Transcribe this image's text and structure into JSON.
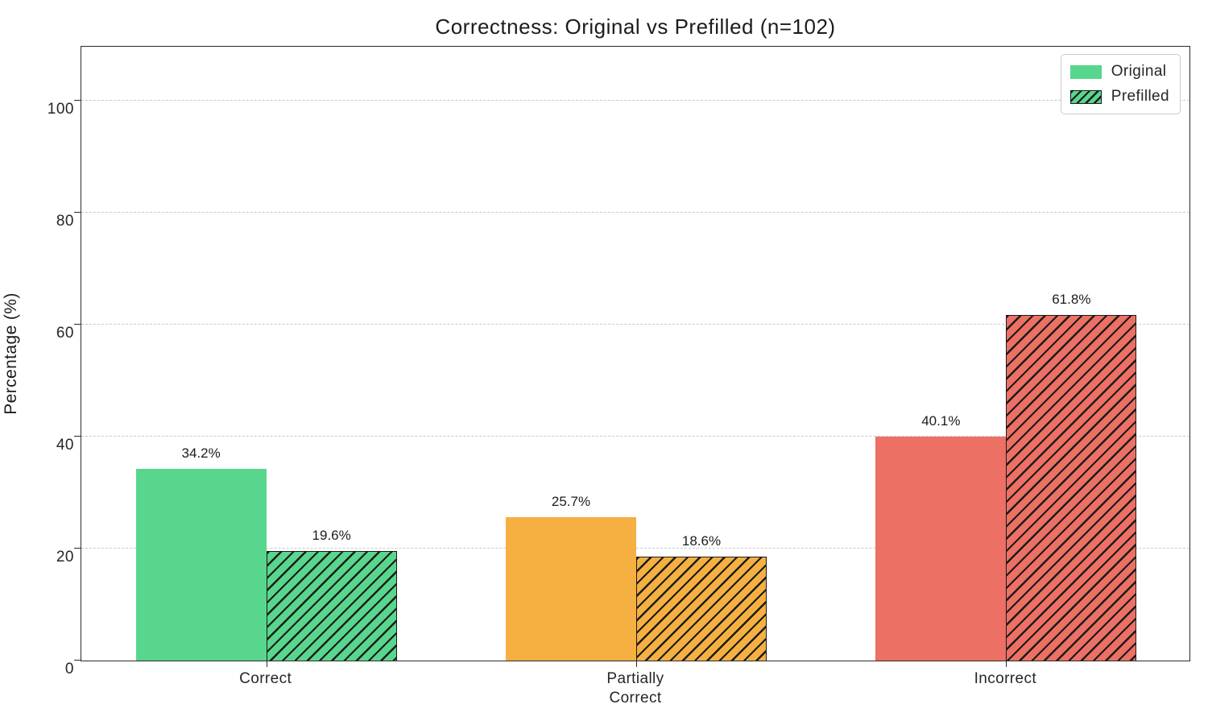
{
  "title": "Correctness: Original vs Prefilled (n=102)",
  "chart_data": {
    "type": "bar",
    "title": "Correctness: Original vs Prefilled (n=102)",
    "categories": [
      "Correct",
      "Partially\nCorrect",
      "Incorrect"
    ],
    "series": [
      {
        "name": "Original",
        "style": "solid",
        "values": [
          34.2,
          25.7,
          40.1
        ],
        "value_labels": [
          "34.2%",
          "25.7%",
          "40.1%"
        ]
      },
      {
        "name": "Prefilled",
        "style": "hatched",
        "values": [
          19.6,
          18.6,
          61.8
        ],
        "value_labels": [
          "19.6%",
          "18.6%",
          "61.8%"
        ]
      }
    ],
    "xlabel": "",
    "ylabel": "Percentage (%)",
    "ylim": [
      0,
      110
    ],
    "yticks": [
      0,
      20,
      40,
      60,
      80,
      100
    ],
    "grid": "horizontal-dashed",
    "legend_position": "upper-right",
    "category_colors": [
      "#58d68d",
      "#f5b041",
      "#ec7063"
    ],
    "hatch_color": "#1b1b1b",
    "hatch_pattern": "diagonal-forward-slash"
  }
}
